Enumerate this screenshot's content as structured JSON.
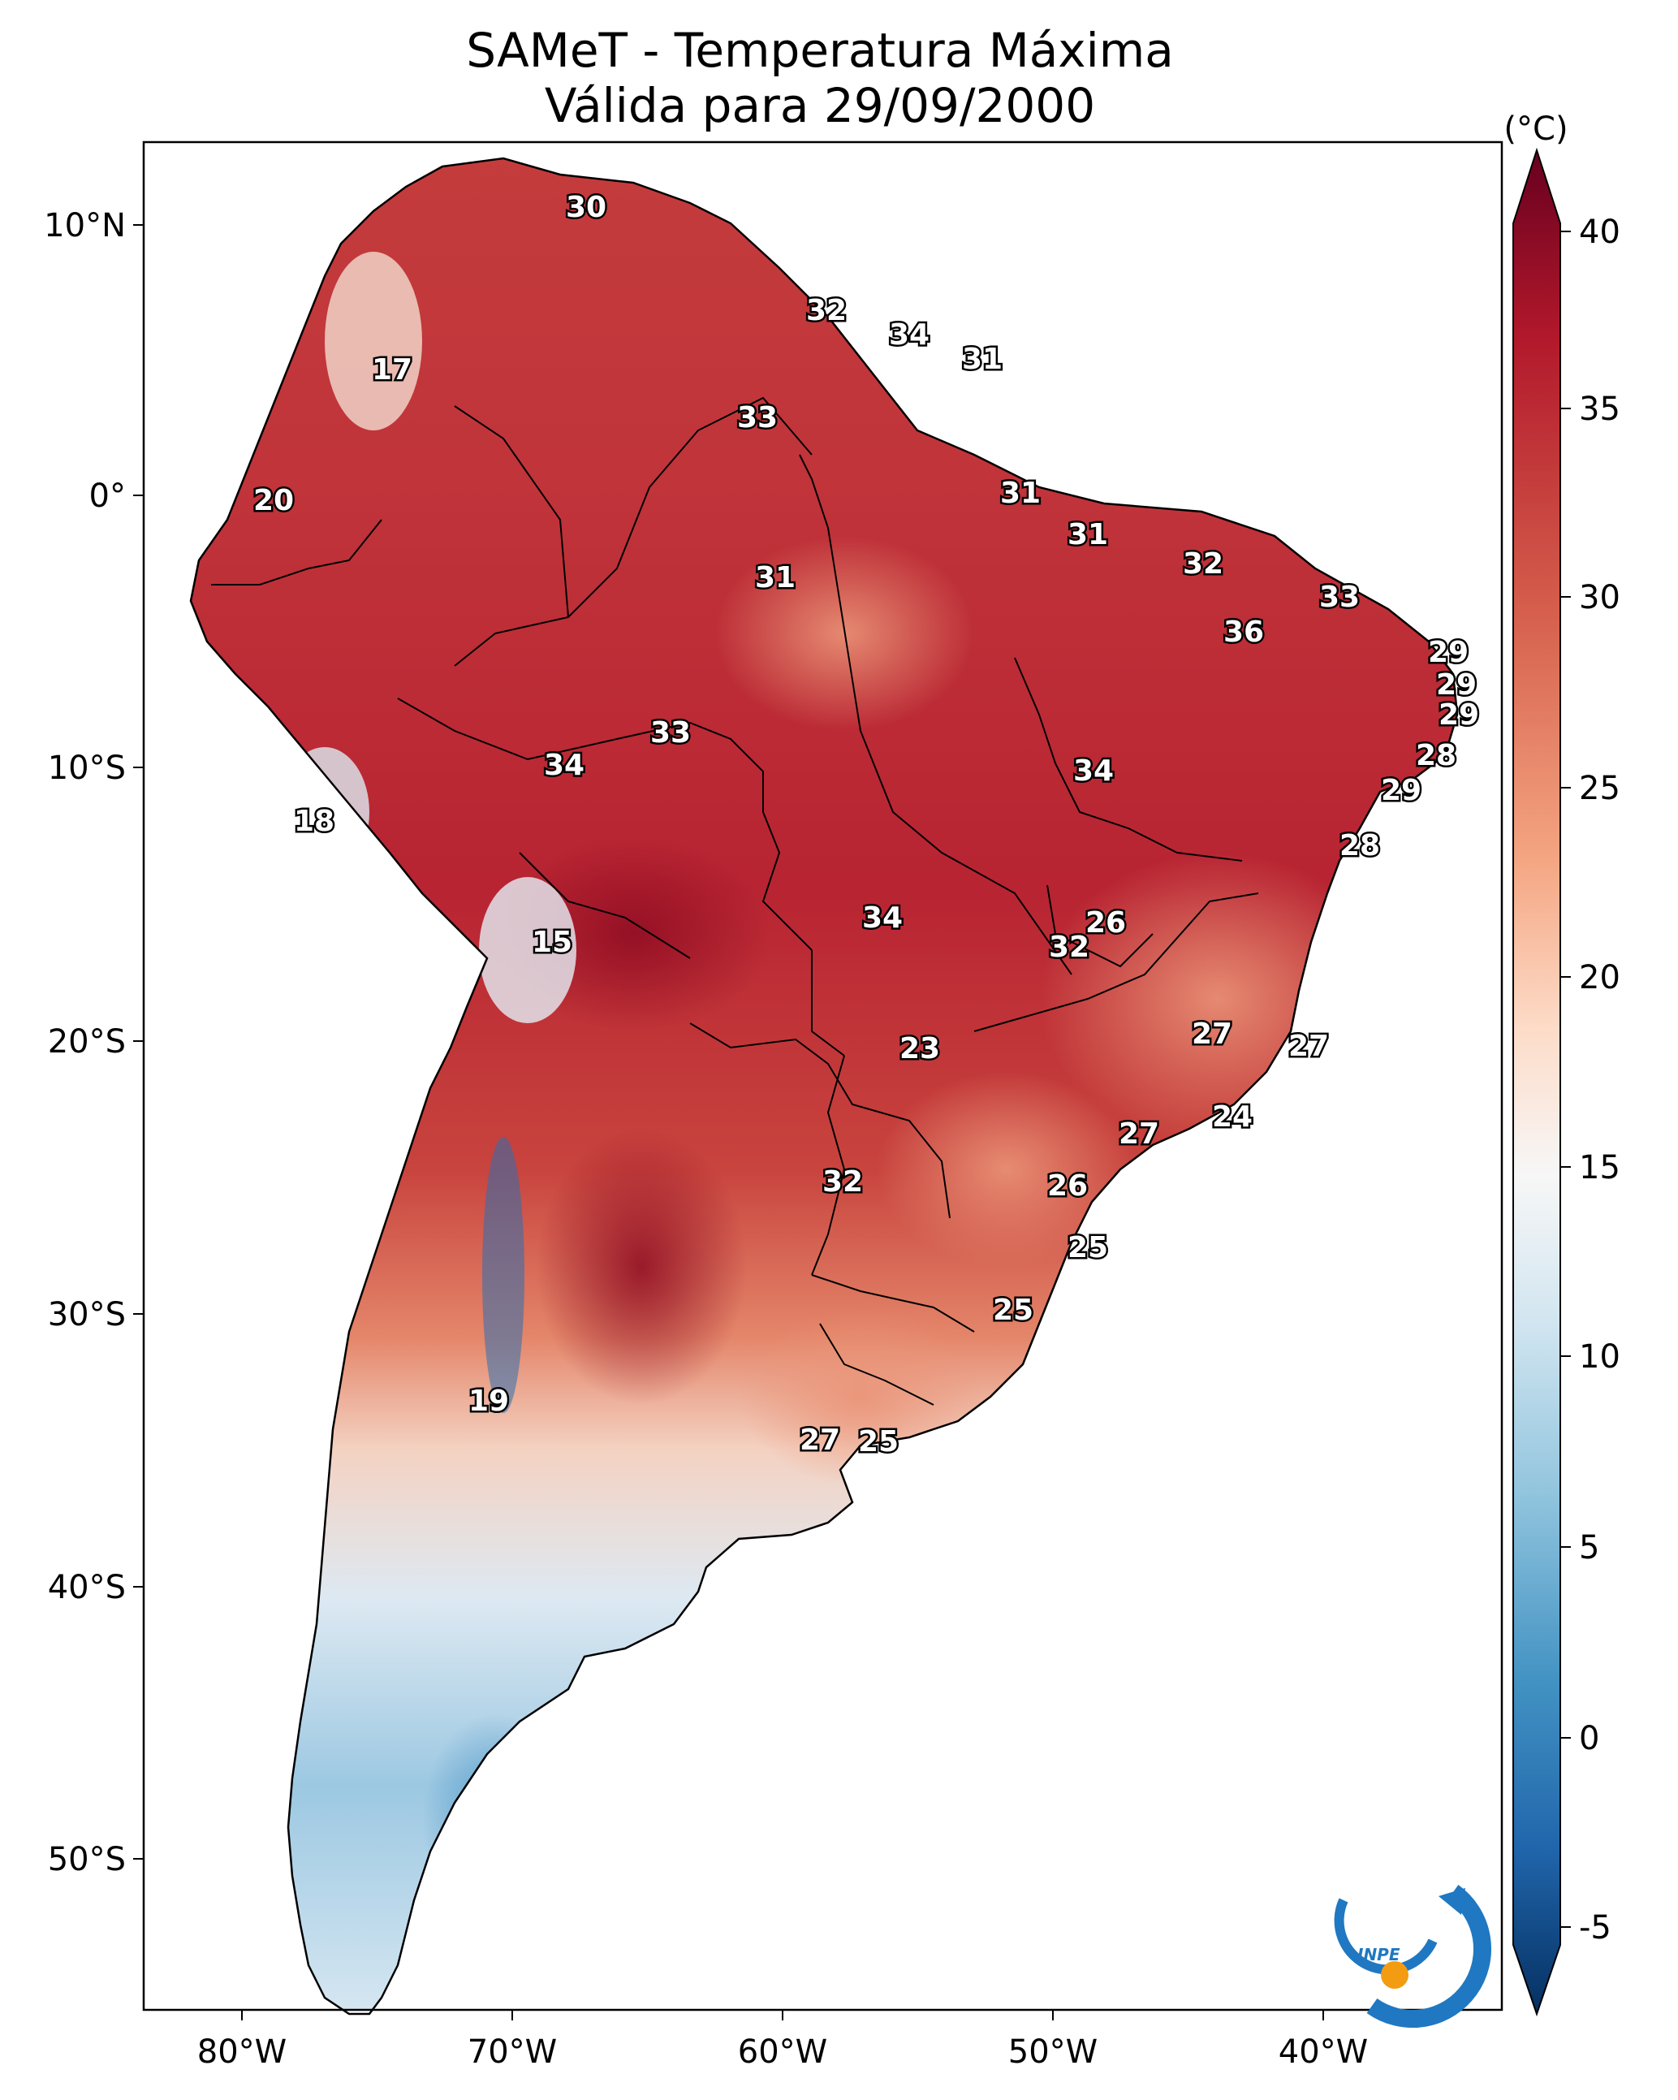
{
  "title": {
    "line1": "SAMeT - Temperatura Máxima",
    "line2": "Válida para 29/09/2000"
  },
  "map": {
    "lon_ticks": [
      "80°W",
      "70°W",
      "60°W",
      "50°W",
      "40°W"
    ],
    "lat_ticks": [
      "10°N",
      "0°",
      "10°S",
      "20°S",
      "30°S",
      "40°S",
      "50°S"
    ]
  },
  "colorbar": {
    "unit": "(°C)",
    "ticks": [
      "40",
      "35",
      "30",
      "25",
      "20",
      "15",
      "10",
      "5",
      "0",
      "-5"
    ],
    "colors": [
      "#67001f",
      "#b2182b",
      "#d6604d",
      "#f4a582",
      "#fddbc7",
      "#f7f7f7",
      "#d1e5f0",
      "#92c5de",
      "#4393c3",
      "#2166ac",
      "#053061"
    ]
  },
  "logo": {
    "text": "INPE",
    "colors": {
      "blue": "#1f78c1",
      "orange": "#f39c12"
    }
  },
  "station_labels": [
    {
      "id": "s1",
      "value": "30"
    },
    {
      "id": "s2",
      "value": "32"
    },
    {
      "id": "s3",
      "value": "34"
    },
    {
      "id": "s4",
      "value": "31"
    },
    {
      "id": "s5",
      "value": "17"
    },
    {
      "id": "s6",
      "value": "33"
    },
    {
      "id": "s7",
      "value": "20"
    },
    {
      "id": "s8",
      "value": "31"
    },
    {
      "id": "s9",
      "value": "31"
    },
    {
      "id": "s10",
      "value": "31"
    },
    {
      "id": "s11",
      "value": "32"
    },
    {
      "id": "s12",
      "value": "33"
    },
    {
      "id": "s13",
      "value": "36"
    },
    {
      "id": "s14",
      "value": "29"
    },
    {
      "id": "s15",
      "value": "29"
    },
    {
      "id": "s16",
      "value": "29"
    },
    {
      "id": "s17",
      "value": "33"
    },
    {
      "id": "s18",
      "value": "34"
    },
    {
      "id": "s19",
      "value": "34"
    },
    {
      "id": "s20",
      "value": "28"
    },
    {
      "id": "s21",
      "value": "29"
    },
    {
      "id": "s22",
      "value": "18"
    },
    {
      "id": "s23",
      "value": "28"
    },
    {
      "id": "s24",
      "value": "34"
    },
    {
      "id": "s25",
      "value": "26"
    },
    {
      "id": "s26",
      "value": "15"
    },
    {
      "id": "s27",
      "value": "32"
    },
    {
      "id": "s28",
      "value": "23"
    },
    {
      "id": "s29",
      "value": "27"
    },
    {
      "id": "s30",
      "value": "27"
    },
    {
      "id": "s31",
      "value": "24"
    },
    {
      "id": "s32",
      "value": "27"
    },
    {
      "id": "s33",
      "value": "32"
    },
    {
      "id": "s34",
      "value": "26"
    },
    {
      "id": "s35",
      "value": "25"
    },
    {
      "id": "s36",
      "value": "25"
    },
    {
      "id": "s37",
      "value": "19"
    },
    {
      "id": "s38",
      "value": "27"
    },
    {
      "id": "s39",
      "value": "25"
    }
  ]
}
